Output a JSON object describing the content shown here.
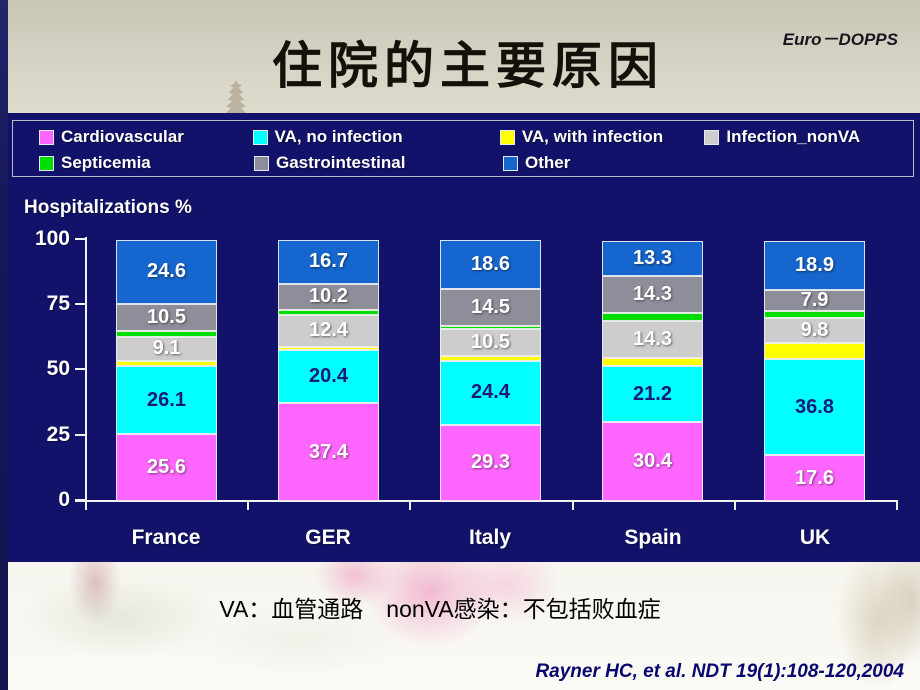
{
  "slide": {
    "title": "住院的主要原因",
    "corner_tag": "Euro－DOPPS",
    "note": "VA：血管通路　nonVA感染：不包括败血症",
    "citation": "Rayner HC, et al. NDT 19(1):108-120,2004"
  },
  "colors": {
    "panel_background": "#12126B",
    "axis": "#F2F2F2",
    "citation_text": "#07076E"
  },
  "chart_data": {
    "type": "bar",
    "subtype": "stacked-percent",
    "title": "Hospitalizations %",
    "categories": [
      "France",
      "GER",
      "Italy",
      "Spain",
      "UK"
    ],
    "y_ticks": [
      100,
      75,
      50,
      25,
      0
    ],
    "ylim": [
      0,
      100
    ],
    "grid": false,
    "legend_position": "top",
    "series": [
      {
        "name": "Cardiovascular",
        "color": "#FF66FF",
        "label_color": "#FFFFFF",
        "show_labels": true,
        "values": [
          25.6,
          37.4,
          29.3,
          30.4,
          17.6
        ]
      },
      {
        "name": "VA, no infection",
        "color": "#00FFFF",
        "label_color": "#1A1A78",
        "show_labels": true,
        "values": [
          26.1,
          20.4,
          24.4,
          21.2,
          36.8
        ]
      },
      {
        "name": "VA, with infection",
        "color": "#FFFF00",
        "label_color": "#FFFFFF",
        "show_labels": false,
        "values": [
          2.0,
          1.2,
          1.7,
          3.2,
          6.0
        ]
      },
      {
        "name": "Infection_nonVA",
        "color": "#CDCDCD",
        "label_color": "#FFFFFF",
        "show_labels": true,
        "values": [
          9.1,
          12.4,
          10.5,
          14.3,
          9.8
        ]
      },
      {
        "name": "Septicemia",
        "color": "#00DD00",
        "label_color": "#FFFFFF",
        "show_labels": false,
        "values": [
          2.2,
          1.7,
          1.0,
          3.0,
          2.6
        ]
      },
      {
        "name": "Gastrointestinal",
        "color": "#8E8E9A",
        "label_color": "#FFFFFF",
        "show_labels": true,
        "values": [
          10.5,
          10.2,
          14.5,
          14.3,
          7.9
        ]
      },
      {
        "name": "Other",
        "color": "#1566CE",
        "label_color": "#FFFFFF",
        "show_labels": true,
        "values": [
          24.6,
          16.7,
          18.6,
          13.3,
          18.9
        ]
      }
    ],
    "legend_rows": [
      [
        0,
        1,
        2,
        3
      ],
      [
        4,
        5,
        6
      ]
    ]
  }
}
